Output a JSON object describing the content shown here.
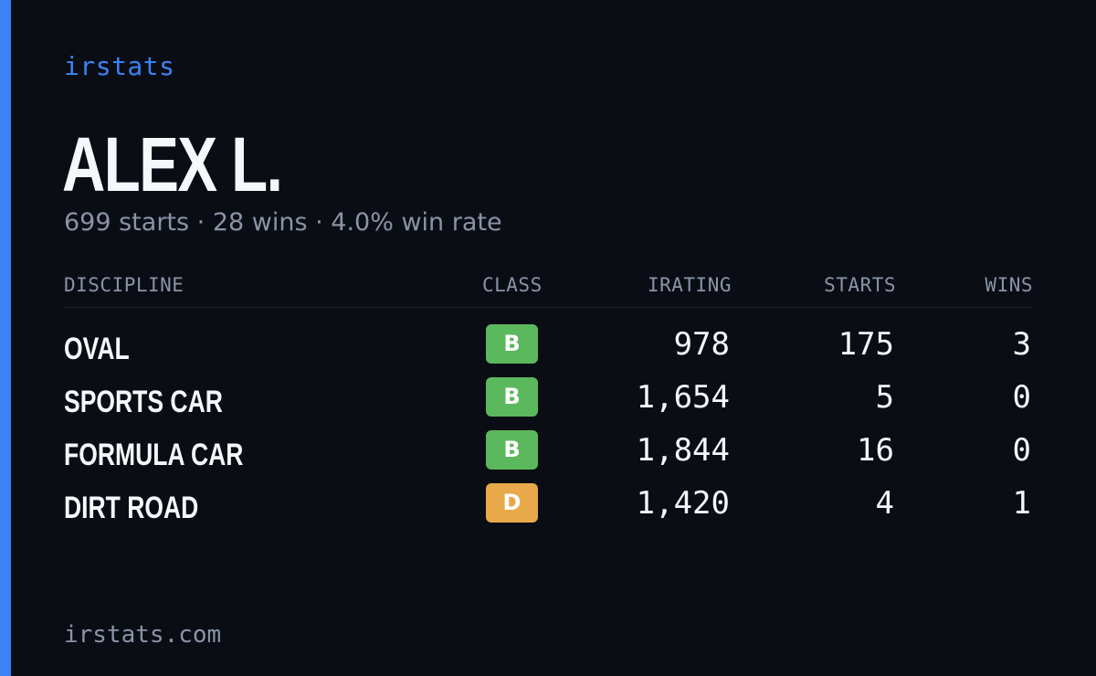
{
  "brand": "irstats",
  "player": {
    "name": "ALEX L.",
    "summary": "699 starts · 28 wins · 4.0% win rate"
  },
  "table": {
    "headers": {
      "discipline": "DISCIPLINE",
      "class": "CLASS",
      "irating": "IRATING",
      "starts": "STARTS",
      "wins": "WINS"
    },
    "rows": [
      {
        "discipline": "OVAL",
        "class": "B",
        "class_color": "#5cb85c",
        "irating": "978",
        "starts": "175",
        "wins": "3"
      },
      {
        "discipline": "SPORTS CAR",
        "class": "B",
        "class_color": "#5cb85c",
        "irating": "1,654",
        "starts": "5",
        "wins": "0"
      },
      {
        "discipline": "FORMULA CAR",
        "class": "B",
        "class_color": "#5cb85c",
        "irating": "1,844",
        "starts": "16",
        "wins": "0"
      },
      {
        "discipline": "DIRT ROAD",
        "class": "D",
        "class_color": "#e8a94a",
        "irating": "1,420",
        "starts": "4",
        "wins": "1"
      }
    ]
  },
  "footer": "irstats.com",
  "colors": {
    "accent": "#3b82f6",
    "background": "#0a0d14",
    "muted_text": "#8a94a6",
    "class_b": "#5cb85c",
    "class_d": "#e8a94a"
  }
}
